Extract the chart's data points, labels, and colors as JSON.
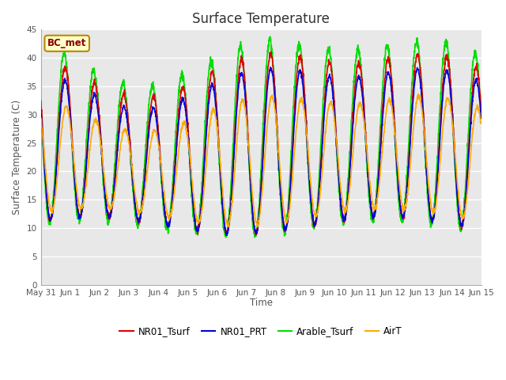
{
  "title": "Surface Temperature",
  "ylabel": "Surface Temperature (C)",
  "xlabel": "Time",
  "ylim": [
    0,
    45
  ],
  "yticks": [
    0,
    5,
    10,
    15,
    20,
    25,
    30,
    35,
    40,
    45
  ],
  "annotation": "BC_met",
  "series": {
    "NR01_Tsurf": {
      "color": "#dd0000",
      "lw": 1.2
    },
    "NR01_PRT": {
      "color": "#0000dd",
      "lw": 1.2
    },
    "Arable_Tsurf": {
      "color": "#00dd00",
      "lw": 1.2
    },
    "AirT": {
      "color": "#ffaa00",
      "lw": 1.2
    }
  },
  "x_tick_labels": [
    "May 31",
    "Jun 1",
    "Jun 2",
    "Jun 3",
    "Jun 4",
    "Jun 5",
    "Jun 6",
    "Jun 7",
    "Jun 8",
    "Jun 9",
    "Jun 10",
    "Jun 11",
    "Jun 12",
    "Jun 13",
    "Jun 14",
    "Jun 15"
  ],
  "figsize": [
    6.4,
    4.8
  ],
  "dpi": 100,
  "plot_bg": "#e8e8e8",
  "fig_bg": "#ffffff"
}
